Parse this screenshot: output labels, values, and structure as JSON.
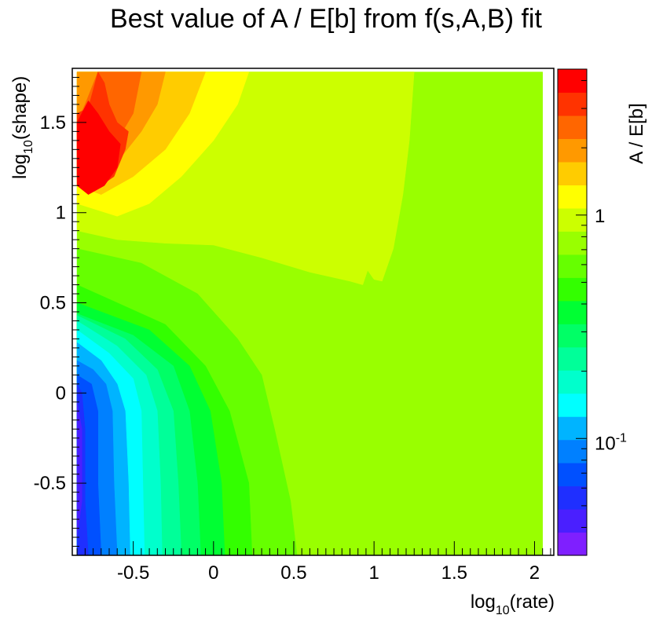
{
  "chart_data": {
    "type": "heatmap",
    "title": "Best value of A / E[b] from f(s,A,B) fit",
    "xlabel": {
      "base": "log",
      "sub": "10",
      "rest": "(rate)"
    },
    "ylabel": {
      "base": "log",
      "sub": "10",
      "rest": "(shape)"
    },
    "zlabel": "A / E[b]",
    "xlim": [
      -0.88,
      2.12
    ],
    "ylim": [
      -0.9,
      1.8
    ],
    "xticks": [
      "-0.5",
      "0",
      "0.5",
      "1",
      "1.5",
      "2"
    ],
    "xtick_values": [
      -0.5,
      0,
      0.5,
      1,
      1.5,
      2
    ],
    "yticks": [
      "-0.5",
      "0",
      "0.5",
      "1",
      "1.5"
    ],
    "ytick_values": [
      -0.5,
      0,
      0.5,
      1,
      1.5
    ],
    "zscale": "log",
    "zlim": [
      0.03,
      4.5
    ],
    "zticks": [
      {
        "base": "10",
        "exp": "-1",
        "value": 0.1
      },
      {
        "base": "1",
        "exp": "",
        "value": 1
      }
    ],
    "palette": [
      "#7f1fff",
      "#4a1fff",
      "#1f2fff",
      "#0050ff",
      "#0080ff",
      "#00b4ff",
      "#00ffff",
      "#00ffcc",
      "#00ff99",
      "#00ff66",
      "#00ff33",
      "#33ff00",
      "#66ff00",
      "#99ff00",
      "#ccff00",
      "#ffff00",
      "#ffcc00",
      "#ff9900",
      "#ff6600",
      "#ff3300",
      "#ff0000"
    ],
    "contours": [
      {
        "level": 13,
        "points": [
          [
            -0.85,
            -0.9
          ],
          [
            2.05,
            -0.9
          ],
          [
            2.05,
            1.78
          ],
          [
            -0.85,
            1.78
          ]
        ]
      },
      {
        "level": 12,
        "points": [
          [
            -0.85,
            -0.9
          ],
          [
            0.52,
            -0.9
          ],
          [
            0.48,
            -0.6
          ],
          [
            0.38,
            -0.2
          ],
          [
            0.3,
            0.1
          ],
          [
            0.15,
            0.3
          ],
          [
            -0.1,
            0.55
          ],
          [
            -0.45,
            0.72
          ],
          [
            -0.85,
            0.8
          ]
        ]
      },
      {
        "level": 11,
        "points": [
          [
            -0.85,
            -0.9
          ],
          [
            0.24,
            -0.9
          ],
          [
            0.22,
            -0.5
          ],
          [
            0.1,
            -0.1
          ],
          [
            -0.05,
            0.15
          ],
          [
            -0.3,
            0.38
          ],
          [
            -0.6,
            0.5
          ],
          [
            -0.85,
            0.6
          ]
        ]
      },
      {
        "level": 10,
        "points": [
          [
            -0.85,
            -0.9
          ],
          [
            0.07,
            -0.9
          ],
          [
            0.05,
            -0.5
          ],
          [
            -0.02,
            -0.1
          ],
          [
            -0.15,
            0.15
          ],
          [
            -0.4,
            0.35
          ],
          [
            -0.85,
            0.5
          ]
        ]
      },
      {
        "level": 9,
        "points": [
          [
            -0.85,
            -0.9
          ],
          [
            -0.08,
            -0.9
          ],
          [
            -0.1,
            -0.5
          ],
          [
            -0.15,
            -0.1
          ],
          [
            -0.25,
            0.15
          ],
          [
            -0.5,
            0.32
          ],
          [
            -0.85,
            0.44
          ]
        ]
      },
      {
        "level": 8,
        "points": [
          [
            -0.85,
            -0.9
          ],
          [
            -0.2,
            -0.9
          ],
          [
            -0.22,
            -0.5
          ],
          [
            -0.25,
            -0.1
          ],
          [
            -0.35,
            0.13
          ],
          [
            -0.55,
            0.3
          ],
          [
            -0.85,
            0.43
          ]
        ]
      },
      {
        "level": 7,
        "points": [
          [
            -0.85,
            -0.9
          ],
          [
            -0.32,
            -0.9
          ],
          [
            -0.33,
            -0.5
          ],
          [
            -0.35,
            -0.1
          ],
          [
            -0.42,
            0.1
          ],
          [
            -0.6,
            0.26
          ],
          [
            -0.85,
            0.4
          ]
        ]
      },
      {
        "level": 6,
        "points": [
          [
            -0.85,
            -0.9
          ],
          [
            -0.43,
            -0.9
          ],
          [
            -0.44,
            -0.5
          ],
          [
            -0.45,
            -0.1
          ],
          [
            -0.5,
            0.08
          ],
          [
            -0.65,
            0.22
          ],
          [
            -0.85,
            0.35
          ]
        ]
      },
      {
        "level": 5,
        "points": [
          [
            -0.85,
            -0.9
          ],
          [
            -0.52,
            -0.9
          ],
          [
            -0.53,
            -0.5
          ],
          [
            -0.55,
            -0.1
          ],
          [
            -0.6,
            0.05
          ],
          [
            -0.7,
            0.18
          ],
          [
            -0.85,
            0.28
          ]
        ]
      },
      {
        "level": 4,
        "points": [
          [
            -0.85,
            -0.9
          ],
          [
            -0.6,
            -0.9
          ],
          [
            -0.62,
            -0.5
          ],
          [
            -0.63,
            -0.1
          ],
          [
            -0.67,
            0.05
          ],
          [
            -0.75,
            0.13
          ],
          [
            -0.85,
            0.18
          ]
        ]
      },
      {
        "level": 3,
        "points": [
          [
            -0.85,
            -0.9
          ],
          [
            -0.7,
            -0.9
          ],
          [
            -0.72,
            -0.5
          ],
          [
            -0.72,
            -0.1
          ],
          [
            -0.76,
            0.05
          ],
          [
            -0.85,
            0.1
          ]
        ]
      },
      {
        "level": 2,
        "points": [
          [
            -0.85,
            -0.9
          ],
          [
            -0.78,
            -0.9
          ],
          [
            -0.8,
            -0.6
          ],
          [
            -0.8,
            -0.2
          ],
          [
            -0.82,
            0.0
          ],
          [
            -0.85,
            0.05
          ]
        ]
      },
      {
        "level": 1,
        "points": [
          [
            -0.85,
            -0.8
          ],
          [
            -0.82,
            -0.6
          ],
          [
            -0.82,
            -0.2
          ],
          [
            -0.85,
            -0.05
          ]
        ]
      },
      {
        "level": 14,
        "points": [
          [
            -0.85,
            0.9
          ],
          [
            -0.6,
            0.85
          ],
          [
            -0.3,
            0.83
          ],
          [
            0.0,
            0.82
          ],
          [
            0.3,
            0.75
          ],
          [
            0.6,
            0.67
          ],
          [
            0.85,
            0.62
          ],
          [
            0.93,
            0.6
          ],
          [
            0.96,
            0.68
          ],
          [
            1.0,
            0.63
          ],
          [
            1.05,
            0.62
          ],
          [
            1.12,
            0.8
          ],
          [
            1.18,
            1.1
          ],
          [
            1.22,
            1.4
          ],
          [
            1.25,
            1.78
          ],
          [
            -0.85,
            1.78
          ]
        ]
      },
      {
        "level": 15,
        "points": [
          [
            -0.85,
            1.05
          ],
          [
            -0.6,
            0.98
          ],
          [
            -0.4,
            1.05
          ],
          [
            -0.2,
            1.2
          ],
          [
            0.0,
            1.4
          ],
          [
            0.15,
            1.6
          ],
          [
            0.22,
            1.78
          ],
          [
            -0.85,
            1.78
          ]
        ]
      },
      {
        "level": 16,
        "points": [
          [
            -0.85,
            1.15
          ],
          [
            -0.7,
            1.1
          ],
          [
            -0.5,
            1.2
          ],
          [
            -0.3,
            1.35
          ],
          [
            -0.15,
            1.55
          ],
          [
            -0.05,
            1.78
          ],
          [
            -0.85,
            1.78
          ]
        ]
      },
      {
        "level": 17,
        "points": [
          [
            -0.85,
            1.25
          ],
          [
            -0.75,
            1.2
          ],
          [
            -0.6,
            1.28
          ],
          [
            -0.45,
            1.45
          ],
          [
            -0.35,
            1.6
          ],
          [
            -0.3,
            1.78
          ],
          [
            -0.85,
            1.78
          ]
        ]
      },
      {
        "level": 18,
        "points": [
          [
            -0.85,
            1.35
          ],
          [
            -0.75,
            1.3
          ],
          [
            -0.6,
            1.4
          ],
          [
            -0.5,
            1.55
          ],
          [
            -0.45,
            1.78
          ],
          [
            -0.72,
            1.78
          ],
          [
            -0.8,
            1.6
          ],
          [
            -0.85,
            1.5
          ]
        ]
      },
      {
        "level": 19,
        "points": [
          [
            -0.85,
            1.2
          ],
          [
            -0.75,
            1.12
          ],
          [
            -0.62,
            1.2
          ],
          [
            -0.55,
            1.35
          ],
          [
            -0.53,
            1.45
          ],
          [
            -0.6,
            1.5
          ],
          [
            -0.65,
            1.6
          ],
          [
            -0.68,
            1.72
          ],
          [
            -0.72,
            1.78
          ],
          [
            -0.75,
            1.68
          ],
          [
            -0.78,
            1.58
          ],
          [
            -0.85,
            1.55
          ]
        ]
      },
      {
        "level": 20,
        "points": [
          [
            -0.85,
            1.15
          ],
          [
            -0.78,
            1.1
          ],
          [
            -0.68,
            1.15
          ],
          [
            -0.6,
            1.25
          ],
          [
            -0.58,
            1.38
          ],
          [
            -0.65,
            1.45
          ],
          [
            -0.72,
            1.55
          ],
          [
            -0.78,
            1.62
          ],
          [
            -0.85,
            1.5
          ]
        ]
      }
    ]
  }
}
